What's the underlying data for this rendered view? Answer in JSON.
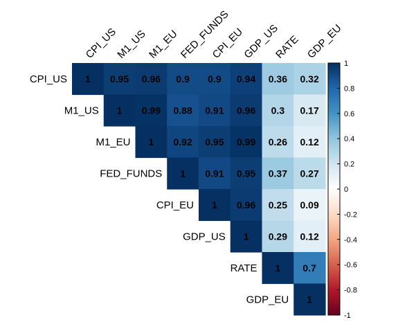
{
  "chart_data": {
    "type": "heatmap",
    "title": "",
    "variables": [
      "CPI_US",
      "M1_US",
      "M1_EU",
      "FED_FUNDS",
      "CPI_EU",
      "GDP_US",
      "RATE",
      "GDP_EU"
    ],
    "matrix_upper": [
      [
        1,
        0.95,
        0.96,
        0.9,
        0.9,
        0.94,
        0.36,
        0.32
      ],
      [
        null,
        1,
        0.99,
        0.88,
        0.91,
        0.96,
        0.3,
        0.17
      ],
      [
        null,
        null,
        1,
        0.92,
        0.95,
        0.99,
        0.26,
        0.12
      ],
      [
        null,
        null,
        null,
        1,
        0.91,
        0.95,
        0.37,
        0.27
      ],
      [
        null,
        null,
        null,
        null,
        1,
        0.96,
        0.25,
        0.09
      ],
      [
        null,
        null,
        null,
        null,
        null,
        1,
        0.29,
        0.12
      ],
      [
        null,
        null,
        null,
        null,
        null,
        null,
        1,
        0.7
      ],
      [
        null,
        null,
        null,
        null,
        null,
        null,
        null,
        1
      ]
    ],
    "colorbar": {
      "range": [
        -1,
        1
      ],
      "ticks": [
        1,
        0.8,
        0.6,
        0.4,
        0.2,
        0,
        -0.2,
        -0.4,
        -0.6,
        -0.8,
        -1
      ],
      "colors": [
        "#67001F",
        "#B2182B",
        "#D6604D",
        "#F4A582",
        "#FDDBC7",
        "#FFFFFF",
        "#D1E5F0",
        "#92C5DE",
        "#4393C3",
        "#2166AC",
        "#053061"
      ]
    },
    "legend_placement": "right"
  }
}
